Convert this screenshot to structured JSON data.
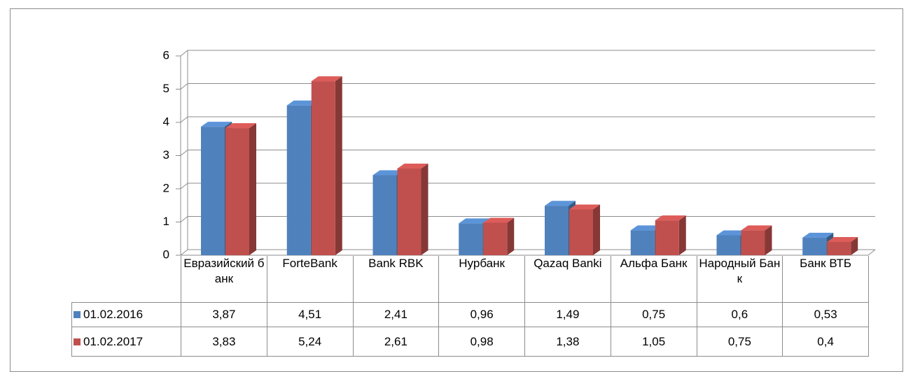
{
  "chart_data": {
    "type": "bar3d",
    "categories": [
      "Евразийский банк",
      "ForteBank",
      "Bank RBK",
      "Нурбанк",
      "Qazaq Banki",
      "Альфа Банк",
      "Народный Банк",
      "Банк ВТБ"
    ],
    "series": [
      {
        "name": "01.02.2016",
        "color": "#4f81bd",
        "values": [
          3.87,
          4.51,
          2.41,
          0.96,
          1.49,
          0.75,
          0.6,
          0.53
        ],
        "value_labels": [
          "3,87",
          "4,51",
          "2,41",
          "0,96",
          "1,49",
          "0,75",
          "0,6",
          "0,53"
        ]
      },
      {
        "name": "01.02.2017",
        "color": "#c0504d",
        "values": [
          3.83,
          5.24,
          2.61,
          0.98,
          1.38,
          1.05,
          0.75,
          0.4
        ],
        "value_labels": [
          "3,83",
          "5,24",
          "2,61",
          "0,98",
          "1,38",
          "1,05",
          "0,75",
          "0,4"
        ]
      }
    ],
    "ylim": [
      0,
      6
    ],
    "yticks": [
      0,
      1,
      2,
      3,
      4,
      5,
      6
    ],
    "grid": true,
    "data_table": true
  }
}
